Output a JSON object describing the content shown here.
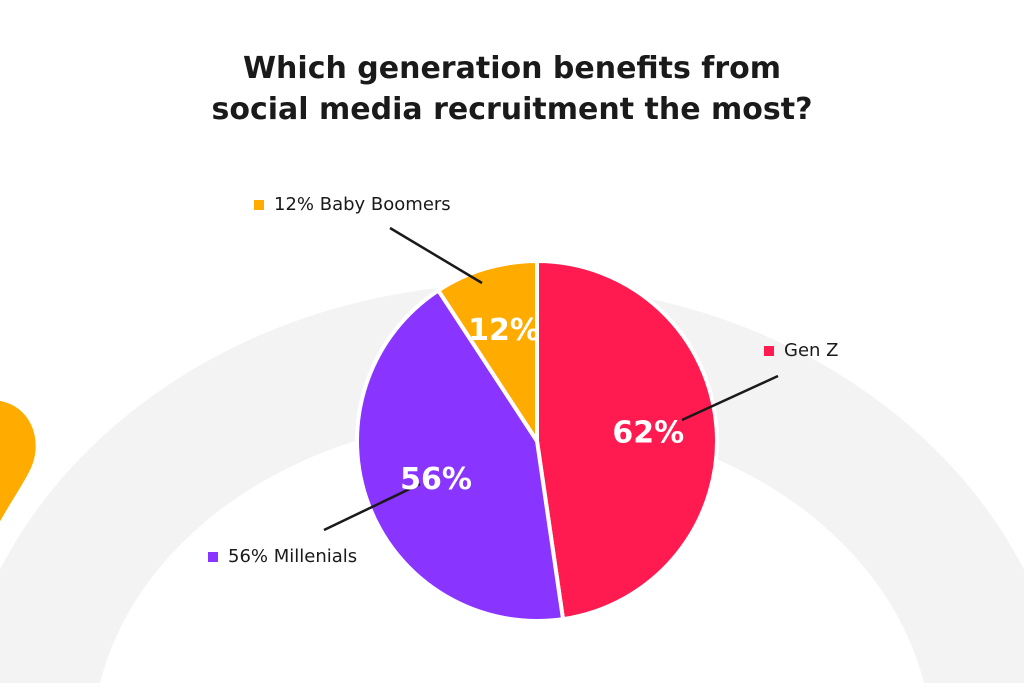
{
  "chart_data": {
    "type": "pie",
    "title_lines": [
      "Which generation benefits from",
      "social media recruitment the most?"
    ],
    "slices": [
      {
        "label": "Gen Z",
        "value": 62,
        "value_label": "62%",
        "legend_text": "Gen Z",
        "color": "#ff1a4f"
      },
      {
        "label": "Millenials",
        "value": 56,
        "value_label": "56%",
        "legend_text": "56% Millenials",
        "color": "#8a35ff"
      },
      {
        "label": "Baby Boomers",
        "value": 12,
        "value_label": "12%",
        "legend_text": "12% Baby Boomers",
        "color": "#ffab00"
      }
    ],
    "legend_placement": "outside, with leader lines"
  },
  "colors": {
    "background": "#ffffff",
    "background_arc": "#f3f3f3",
    "accent_blob": "#ffab00",
    "text": "#1a1a1a",
    "leader_line": "#1a1a1a"
  }
}
